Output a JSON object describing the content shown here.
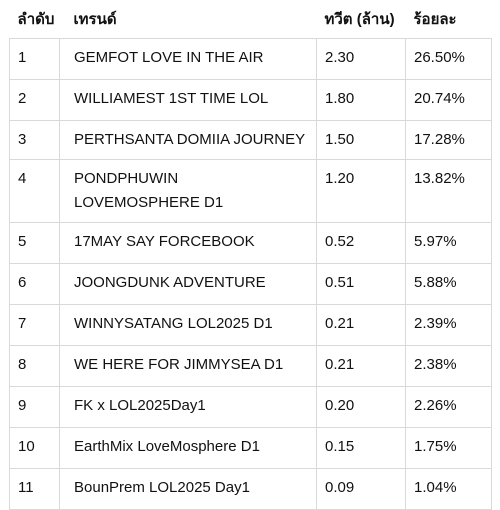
{
  "table": {
    "headers": {
      "rank": "ลำดับ",
      "trend": "เทรนด์",
      "tweets": "ทวีต (ล้าน)",
      "percent": "ร้อยละ"
    },
    "rows": [
      {
        "rank": "1",
        "trend": "GEMFOT LOVE IN THE AIR",
        "tweets": "2.30",
        "percent": "26.50%"
      },
      {
        "rank": "2",
        "trend": "WILLIAMEST 1ST TIME LOL",
        "tweets": "1.80",
        "percent": "20.74%"
      },
      {
        "rank": "3",
        "trend": "PERTHSANTA DOMIIA JOURNEY",
        "tweets": "1.50",
        "percent": "17.28%"
      },
      {
        "rank": "4",
        "trend": "PONDPHUWIN LOVEMOSPHERE D1",
        "tweets": "1.20",
        "percent": "13.82%"
      },
      {
        "rank": "5",
        "trend": "17MAY SAY FORCEBOOK",
        "tweets": "0.52",
        "percent": "5.97%"
      },
      {
        "rank": "6",
        "trend": "JOONGDUNK ADVENTURE",
        "tweets": "0.51",
        "percent": "5.88%"
      },
      {
        "rank": "7",
        "trend": "WINNYSATANG LOL2025 D1",
        "tweets": "0.21",
        "percent": "2.39%"
      },
      {
        "rank": "8",
        "trend": "WE HERE FOR JIMMYSEA D1",
        "tweets": "0.21",
        "percent": "2.38%"
      },
      {
        "rank": "9",
        "trend": "FK x LOL2025Day1",
        "tweets": "0.20",
        "percent": "2.26%"
      },
      {
        "rank": "10",
        "trend": "EarthMix LoveMosphere D1",
        "tweets": "0.15",
        "percent": "1.75%"
      },
      {
        "rank": "11",
        "trend": "BounPrem LOL2025 Day1",
        "tweets": "0.09",
        "percent": "1.04%"
      }
    ]
  }
}
